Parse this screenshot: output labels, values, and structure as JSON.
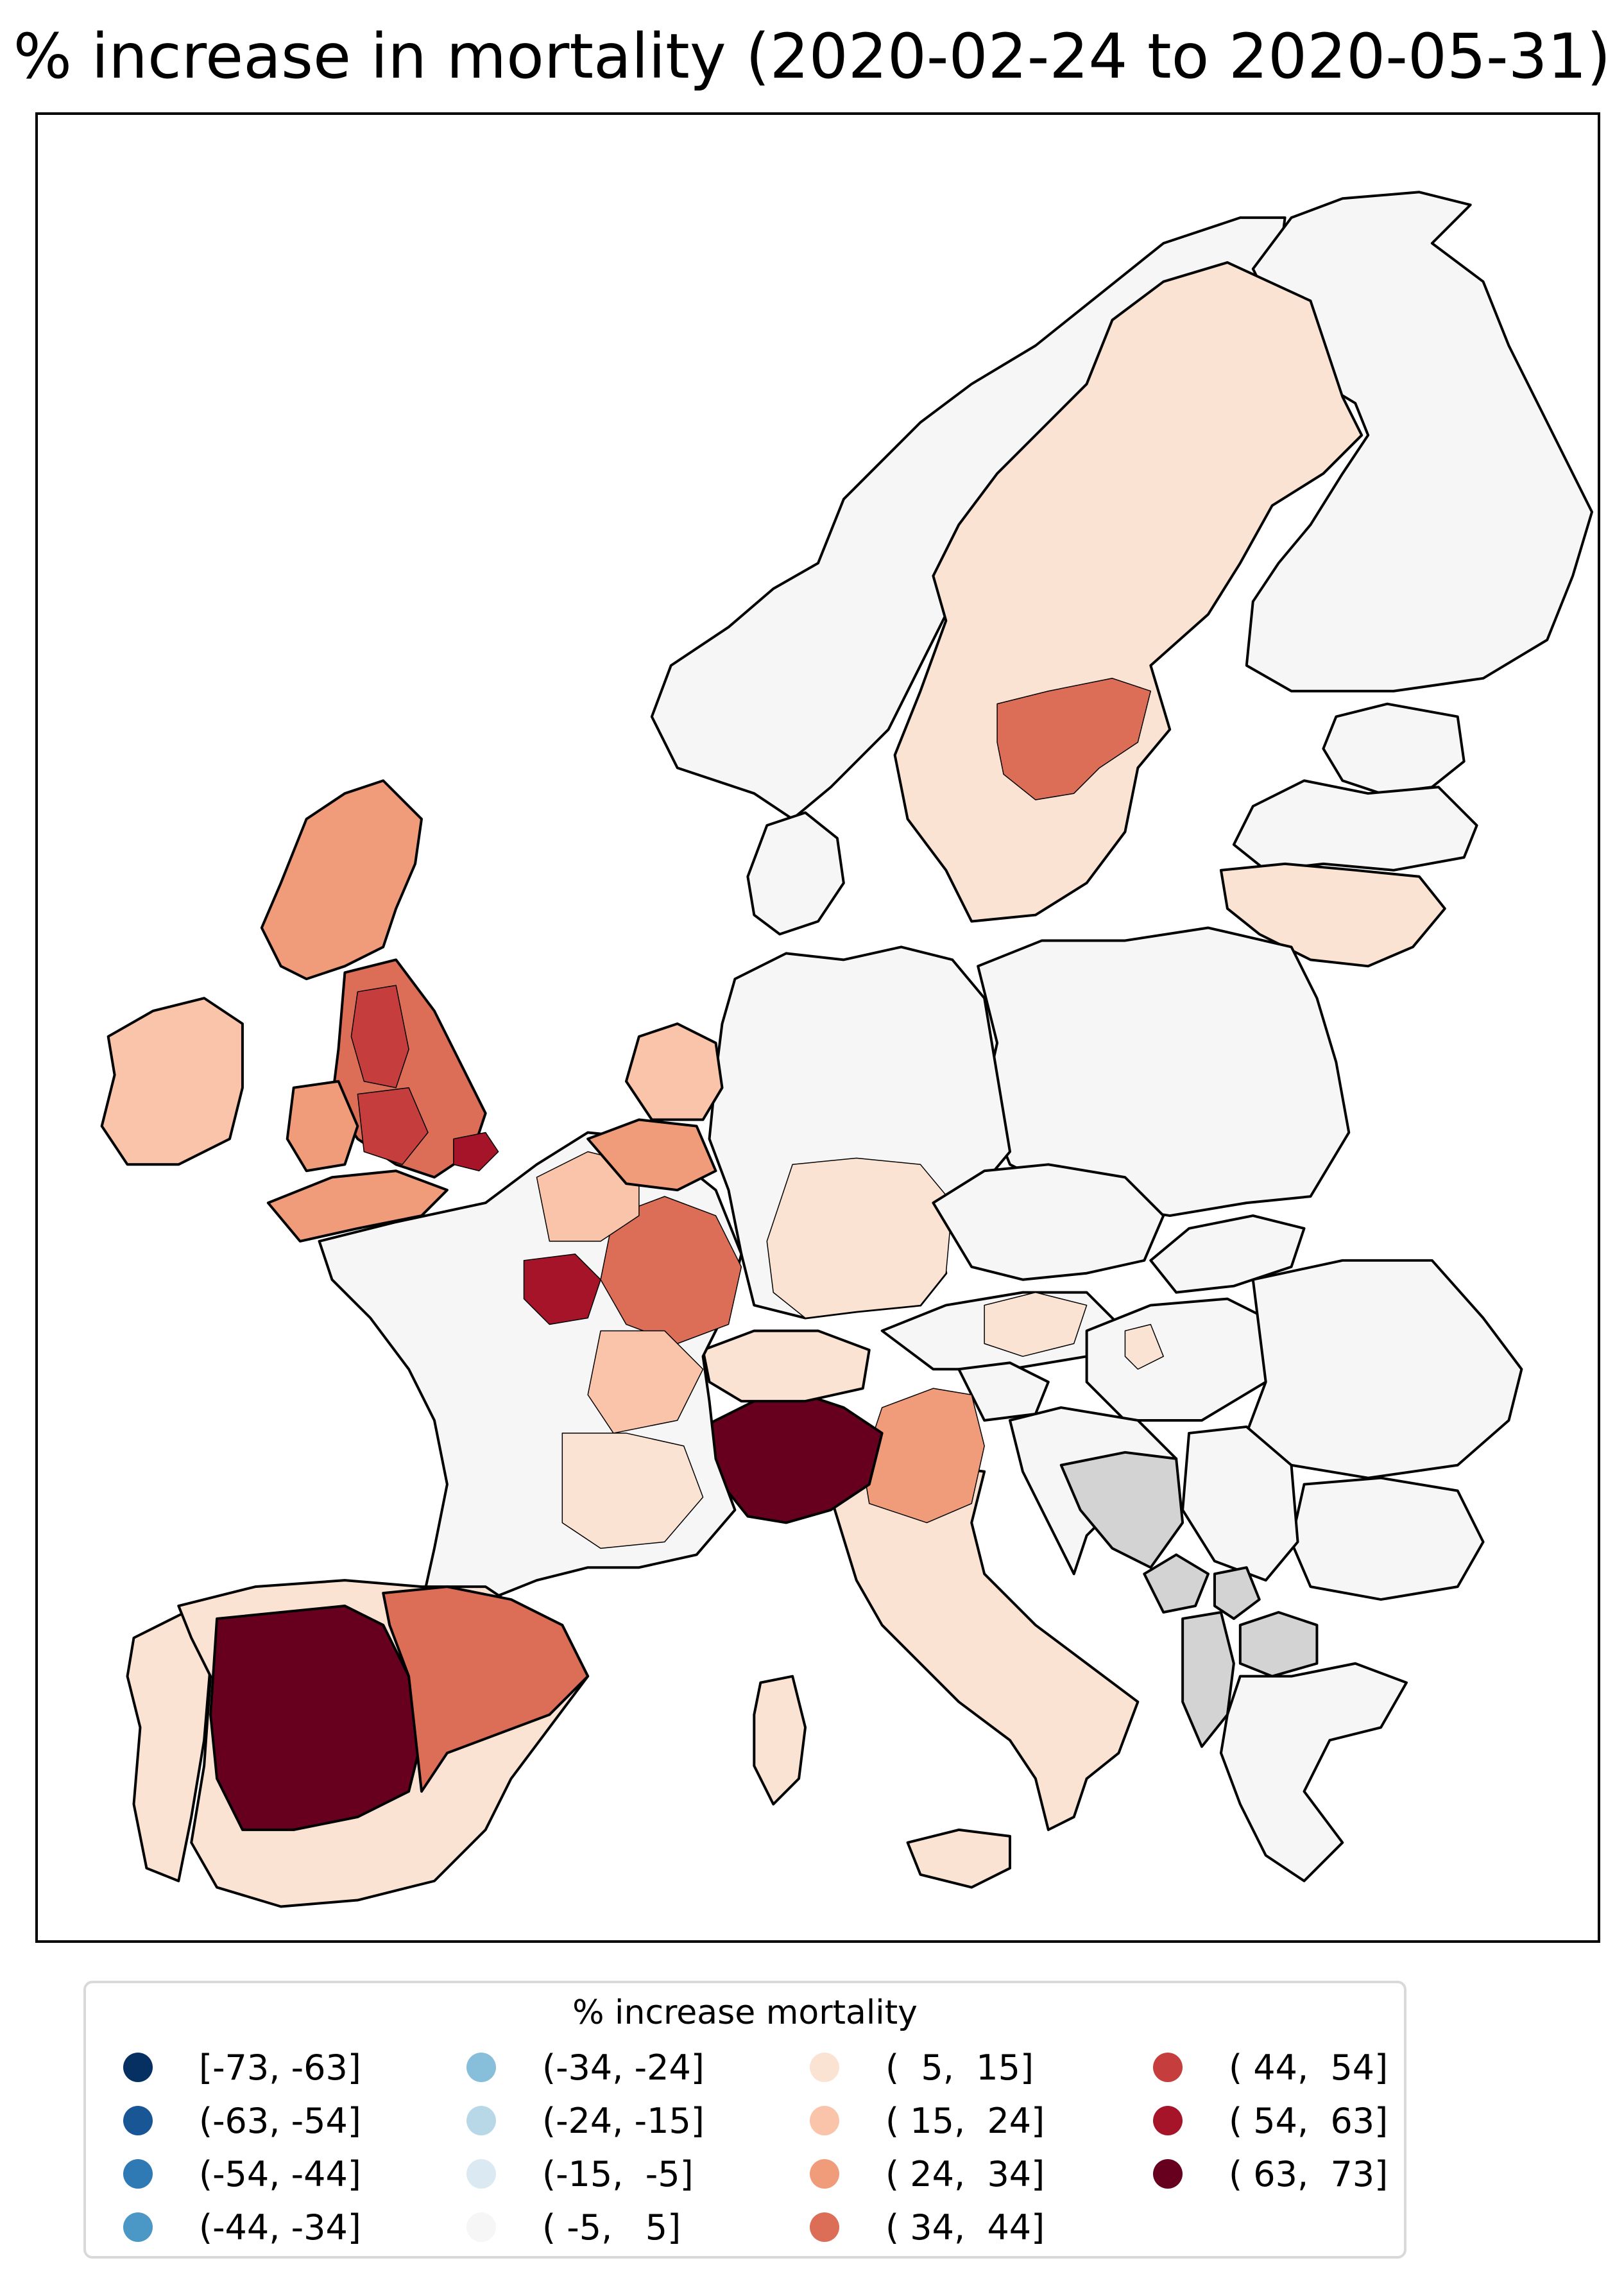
{
  "title": "% increase in mortality (2020-02-24 to 2020-05-31)",
  "legend": {
    "title": "% increase mortality",
    "items": [
      {
        "label": "[-73, -63]",
        "color": "#053061"
      },
      {
        "label": "(-63, -54]",
        "color": "#195696"
      },
      {
        "label": "(-54, -44]",
        "color": "#2f79b5"
      },
      {
        "label": "(-44, -34]",
        "color": "#4b98c7"
      },
      {
        "label": "(-34, -24]",
        "color": "#87beda"
      },
      {
        "label": "(-24, -15]",
        "color": "#b8d8e8"
      },
      {
        "label": "(-15,  -5]",
        "color": "#dbeaf2"
      },
      {
        "label": "( -5,   5]",
        "color": "#f6f6f6"
      },
      {
        "label": "(  5,  15]",
        "color": "#fbe3d4"
      },
      {
        "label": "( 15,  24]",
        "color": "#f9c4a9"
      },
      {
        "label": "( 24,  34]",
        "color": "#f09c7b"
      },
      {
        "label": "( 34,  44]",
        "color": "#dc6e57"
      },
      {
        "label": "( 44,  54]",
        "color": "#c53e3d"
      },
      {
        "label": "( 54,  63]",
        "color": "#a51429"
      },
      {
        "label": "( 63,  73]",
        "color": "#67001f"
      }
    ]
  },
  "colors": {
    "no_data": "#d3d3d3",
    "border": "#000000",
    "background": "#ffffff"
  }
}
